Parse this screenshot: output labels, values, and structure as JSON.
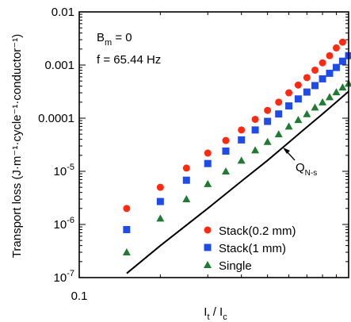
{
  "chart_data": {
    "type": "scatter",
    "xscale": "log",
    "yscale": "log",
    "xlim": [
      0.1,
      1.0
    ],
    "ylim": [
      1e-07,
      0.01
    ],
    "xlabel": {
      "main": "I",
      "sub1": "t",
      "sep": " / I",
      "sub2": "c"
    },
    "ylabel": "Transport loss (J·m⁻¹·cycle⁻¹·conductor⁻¹)",
    "xticks": [
      {
        "value": 0.1,
        "label": "0.1"
      }
    ],
    "yticks": [
      {
        "value": 0.01,
        "text": "0.01",
        "mantissa": "",
        "exp": ""
      },
      {
        "value": 0.001,
        "text": "0.001",
        "mantissa": "",
        "exp": ""
      },
      {
        "value": 0.0001,
        "text": "0.0001",
        "mantissa": "",
        "exp": ""
      },
      {
        "value": 1e-05,
        "text": "",
        "mantissa": "10",
        "exp": "-5"
      },
      {
        "value": 1e-06,
        "text": "",
        "mantissa": "10",
        "exp": "-6"
      },
      {
        "value": 1e-07,
        "text": "",
        "mantissa": "10",
        "exp": "-7"
      }
    ],
    "annotations": {
      "bm": {
        "main": "B",
        "sub": "m",
        "rest": " = 0"
      },
      "freq": "f = 65.44 Hz",
      "curve_label": {
        "main": "Q",
        "sub": "N-s"
      }
    },
    "series": [
      {
        "name": "Stack(0.2 mm)",
        "marker": "circle",
        "color": "#ff2a10",
        "x": [
          0.15,
          0.2,
          0.25,
          0.3,
          0.35,
          0.4,
          0.45,
          0.5,
          0.55,
          0.6,
          0.65,
          0.7,
          0.75,
          0.8,
          0.85,
          0.9,
          0.95
        ],
        "y": [
          2e-06,
          5e-06,
          1.15e-05,
          2.2e-05,
          3.8e-05,
          6e-05,
          9.5e-05,
          0.00014,
          0.0002,
          0.0003,
          0.00042,
          0.00058,
          0.0008,
          0.0011,
          0.0015,
          0.0021,
          0.0027
        ]
      },
      {
        "name": "Stack(1 mm)",
        "marker": "square",
        "color": "#1f4ce8",
        "x": [
          0.15,
          0.2,
          0.25,
          0.3,
          0.35,
          0.4,
          0.45,
          0.5,
          0.55,
          0.6,
          0.65,
          0.7,
          0.75,
          0.8,
          0.85,
          0.9,
          0.95,
          1.0
        ],
        "y": [
          8e-07,
          2.7e-06,
          6.8e-06,
          1.4e-05,
          2.4e-05,
          3.9e-05,
          6e-05,
          8.7e-05,
          0.00012,
          0.00017,
          0.00023,
          0.00031,
          0.00041,
          0.00055,
          0.0007,
          0.0009,
          0.00118,
          0.0015
        ]
      },
      {
        "name": "Single",
        "marker": "triangle",
        "color": "#1f7a32",
        "x": [
          0.15,
          0.2,
          0.25,
          0.3,
          0.35,
          0.4,
          0.45,
          0.5,
          0.55,
          0.6,
          0.65,
          0.7,
          0.75,
          0.8,
          0.85,
          0.9,
          0.95,
          1.0
        ],
        "y": [
          3e-07,
          1.3e-06,
          3e-06,
          5.8e-06,
          1e-05,
          1.6e-05,
          2.5e-05,
          3.6e-05,
          5e-05,
          7e-05,
          9.3e-05,
          0.00012,
          0.00016,
          0.0002,
          0.00025,
          0.00031,
          0.00038,
          0.00045
        ]
      }
    ],
    "line": {
      "name": "Q_N-s",
      "color": "#000000",
      "x": [
        0.15,
        0.2,
        0.3,
        0.4,
        0.5,
        0.6,
        0.7,
        0.8,
        0.9,
        1.0
      ],
      "y": [
        1.2e-07,
        4e-07,
        2e-06,
        6.5e-06,
        1.6e-05,
        3.5e-05,
        6.8e-05,
        0.00012,
        0.0002,
        0.00032
      ]
    }
  }
}
